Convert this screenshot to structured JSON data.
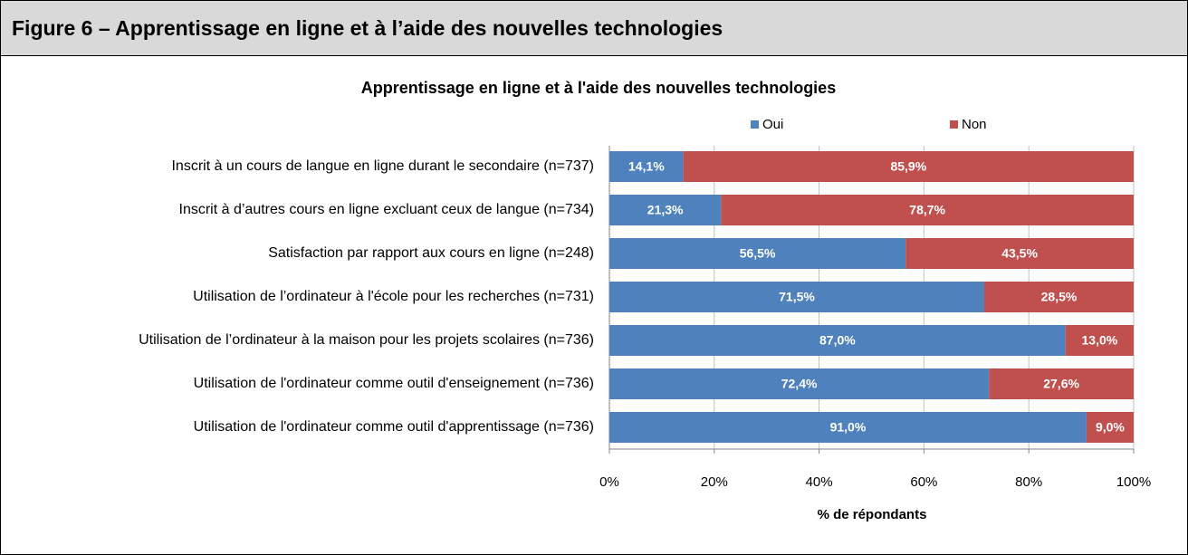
{
  "header": {
    "title": "Figure 6 – Apprentissage en ligne et à l’aide des nouvelles technologies"
  },
  "chart_data": {
    "type": "stacked_barh",
    "title": "Apprentissage en ligne et à l'aide des nouvelles technologies",
    "categories": [
      "Inscrit à un cours de langue en ligne durant le secondaire (n=737)",
      "Inscrit à d’autres cours en ligne excluant ceux de langue (n=734)",
      "Satisfaction par rapport aux cours en ligne (n=248)",
      "Utilisation de l’ordinateur à l'école pour les recherches (n=731)",
      "Utilisation de l’ordinateur à la maison pour les projets scolaires (n=736)",
      "Utilisation de l'ordinateur comme outil d'enseignement (n=736)",
      "Utilisation de l'ordinateur comme outil d'apprentissage (n=736)"
    ],
    "series": [
      {
        "name": "Oui",
        "color": "#4f81bd",
        "values": [
          14.1,
          21.3,
          56.5,
          71.5,
          87.0,
          72.4,
          91.0
        ],
        "value_labels": [
          "14,1%",
          "21,3%",
          "56,5%",
          "71,5%",
          "87,0%",
          "72,4%",
          "91,0%"
        ]
      },
      {
        "name": "Non",
        "color": "#c0504d",
        "values": [
          85.9,
          78.7,
          43.5,
          28.5,
          13.0,
          27.6,
          9.0
        ],
        "value_labels": [
          "85,9%",
          "78,7%",
          "43,5%",
          "28,5%",
          "13,0%",
          "27,6%",
          "9,0%"
        ]
      }
    ],
    "xlabel": "% de répondants",
    "xlim": [
      0,
      100
    ],
    "xticks": [
      {
        "value": 0,
        "label": "0%"
      },
      {
        "value": 20,
        "label": "20%"
      },
      {
        "value": 40,
        "label": "40%"
      },
      {
        "value": 60,
        "label": "60%"
      },
      {
        "value": 80,
        "label": "80%"
      },
      {
        "value": 100,
        "label": "100%"
      }
    ],
    "grid": true,
    "legend": "top"
  }
}
